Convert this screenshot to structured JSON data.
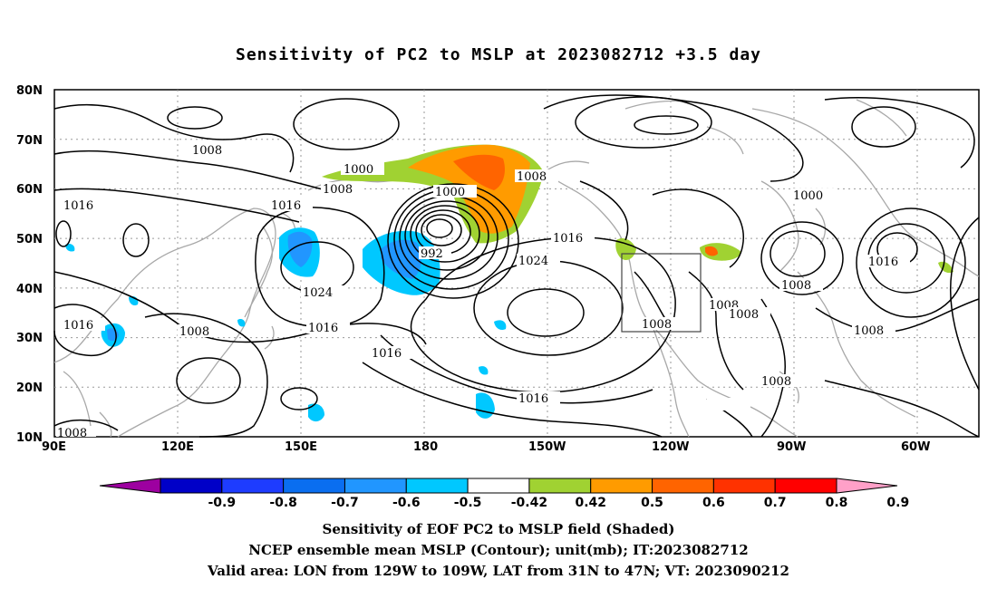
{
  "title": "Sensitivity of PC2 to MSLP at 2023082712 +3.5 day",
  "axes": {
    "lat_ticks": [
      "80N",
      "70N",
      "60N",
      "50N",
      "40N",
      "30N",
      "20N",
      "10N"
    ],
    "lon_ticks": [
      "90E",
      "120E",
      "150E",
      "180",
      "150W",
      "120W",
      "90W",
      "60W"
    ]
  },
  "contour_labels": [
    "1008",
    "1016",
    "1000",
    "1008",
    "1016",
    "1000",
    "1008",
    "992",
    "1024",
    "1016",
    "1016",
    "1024",
    "1016",
    "1016",
    "1008",
    "1008",
    "1008",
    "1008",
    "1000",
    "1016",
    "1008",
    "1008",
    "1016",
    "1008",
    "1008"
  ],
  "colorbar": {
    "labels": [
      "-0.9",
      "-0.8",
      "-0.7",
      "-0.6",
      "-0.5",
      "-0.42",
      "0.42",
      "0.5",
      "0.6",
      "0.7",
      "0.8",
      "0.9"
    ],
    "colors": [
      "#9d00a0",
      "#0000c8",
      "#1e3cff",
      "#0a6ef0",
      "#2196ff",
      "#00c8ff",
      "#ffffff",
      "#a0d232",
      "#ff9b00",
      "#ff6400",
      "#ff3200",
      "#ff0000",
      "#ffa0c8"
    ]
  },
  "footer": {
    "line1": "Sensitivity of EOF PC2 to MSLP field (Shaded)",
    "line2": "NCEP ensemble mean MSLP (Contour); unit(mb); IT:2023082712",
    "line3": "Valid area: LON from 129W to 109W, LAT from 31N to 47N; VT: 2023090212"
  }
}
